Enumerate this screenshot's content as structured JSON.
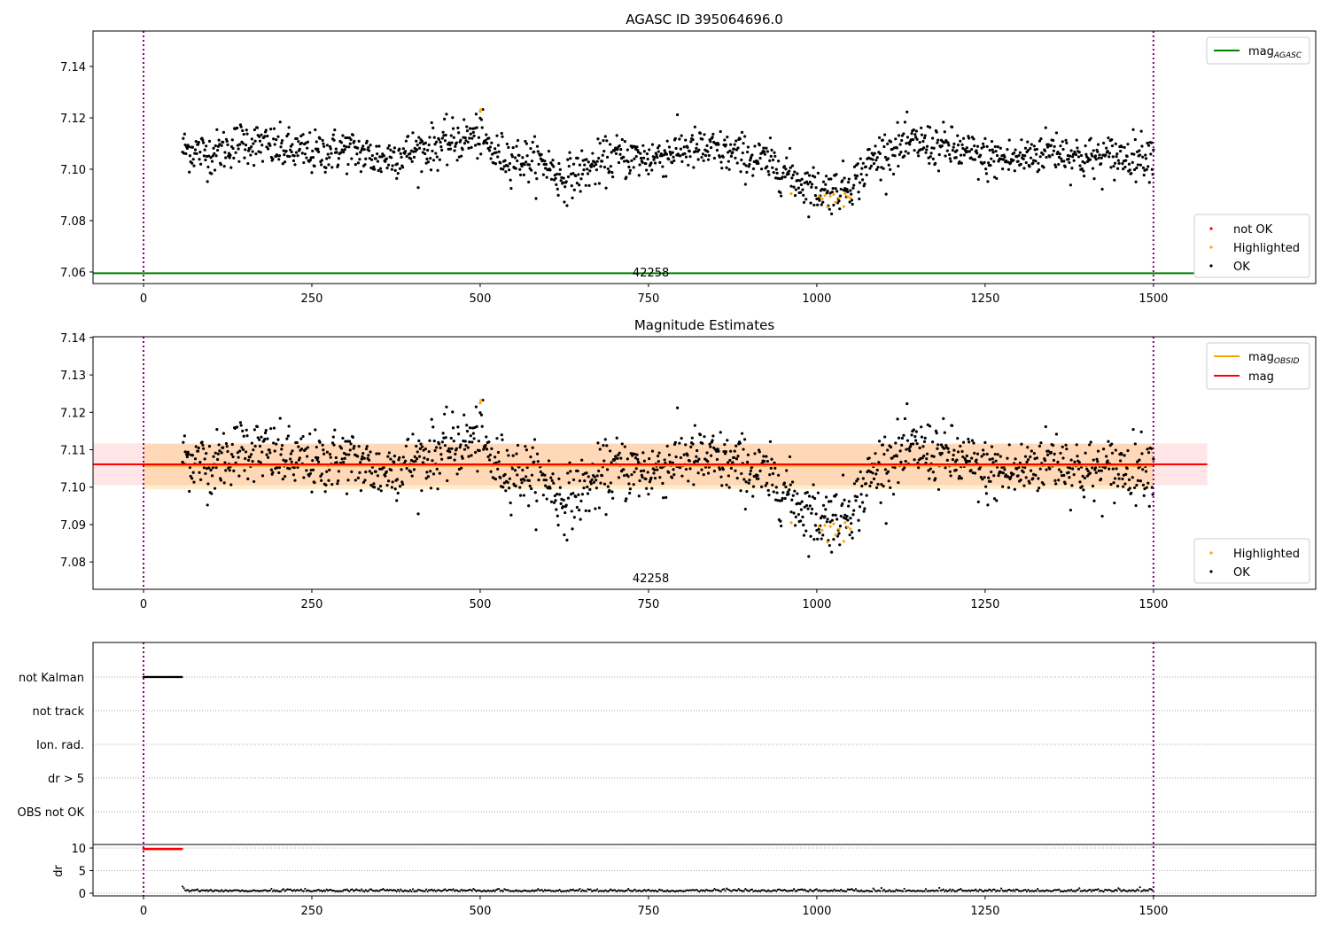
{
  "chart_data": [
    {
      "type": "scatter",
      "title": "AGASC ID 395064696.0",
      "xlim": [
        -75,
        1741
      ],
      "ylim": [
        7.0555,
        7.1538
      ],
      "yticks": [
        7.06,
        7.08,
        7.1,
        7.12,
        7.14
      ],
      "ytick_labels": [
        "7.06",
        "7.08",
        "7.10",
        "7.12",
        "7.14"
      ],
      "xticks": [
        0,
        250,
        500,
        750,
        1000,
        1250,
        1500
      ],
      "xtick_labels": [
        "0",
        "250",
        "500",
        "750",
        "1000",
        "1250",
        "1500"
      ],
      "obsid_label": "42258",
      "obsid_bounds": [
        0,
        1500
      ],
      "mag_agasc": 7.0595,
      "legend_lines": [
        {
          "label": "mag",
          "sub": "AGASC",
          "color": "#008000"
        }
      ],
      "legend_points": [
        {
          "label": "not OK",
          "color": "#ff0000"
        },
        {
          "label": "Highlighted",
          "color": "#ffa500"
        },
        {
          "label": "OK",
          "color": "#000000"
        }
      ]
    },
    {
      "type": "scatter",
      "title": "Magnitude Estimates",
      "xlim": [
        -75,
        1741
      ],
      "ylim": [
        7.0727,
        7.1402
      ],
      "yticks": [
        7.08,
        7.09,
        7.1,
        7.11,
        7.12,
        7.13,
        7.14
      ],
      "ytick_labels": [
        "7.08",
        "7.09",
        "7.10",
        "7.11",
        "7.12",
        "7.13",
        "7.14"
      ],
      "xticks": [
        0,
        250,
        500,
        750,
        1000,
        1250,
        1500
      ],
      "xtick_labels": [
        "0",
        "250",
        "500",
        "750",
        "1000",
        "1250",
        "1500"
      ],
      "obsid_label": "42258",
      "mag": 7.1061,
      "mag_band": [
        7.1005,
        7.1117
      ],
      "mag_band_x": [
        -75,
        1580
      ],
      "mag_obsid": 7.1058,
      "mag_obsid_band": [
        7.0995,
        7.1115
      ],
      "legend_lines": [
        {
          "label": "mag",
          "sub": "OBSID",
          "color": "#ffa500"
        },
        {
          "label": "mag",
          "sub": "",
          "color": "#ff0000"
        }
      ],
      "legend_points": [
        {
          "label": "Highlighted",
          "color": "#ffa500"
        },
        {
          "label": "OK",
          "color": "#000000"
        }
      ]
    },
    {
      "type": "scatter",
      "flags": [
        "not Kalman",
        "not track",
        "Ion. rad.",
        "dr > 5",
        "OBS not OK"
      ],
      "flag_ranges": {
        "not Kalman": [
          0,
          57
        ]
      },
      "dr_ylabel": "dr",
      "dr_yticks": [
        0,
        5,
        10
      ],
      "dr_ytick_labels": [
        "0",
        "5",
        "10"
      ],
      "dr_bad": {
        "range": [
          0,
          57
        ],
        "value": 9.8
      },
      "dr_ok_level": 0.4,
      "xticks": [
        0,
        250,
        500,
        750,
        1000,
        1250,
        1500
      ],
      "xtick_labels": [
        "0",
        "250",
        "500",
        "750",
        "1000",
        "1250",
        "1500"
      ]
    }
  ],
  "series": {
    "time_range": [
      58,
      1500
    ],
    "noise_sd": 0.0042,
    "trend": [
      [
        58,
        7.108
      ],
      [
        100,
        7.106
      ],
      [
        150,
        7.111
      ],
      [
        200,
        7.108
      ],
      [
        250,
        7.106
      ],
      [
        300,
        7.108
      ],
      [
        350,
        7.104
      ],
      [
        400,
        7.107
      ],
      [
        450,
        7.11
      ],
      [
        480,
        7.112
      ],
      [
        500,
        7.113
      ],
      [
        520,
        7.106
      ],
      [
        560,
        7.104
      ],
      [
        600,
        7.102
      ],
      [
        620,
        7.096
      ],
      [
        650,
        7.099
      ],
      [
        700,
        7.105
      ],
      [
        750,
        7.104
      ],
      [
        800,
        7.108
      ],
      [
        850,
        7.107
      ],
      [
        900,
        7.105
      ],
      [
        950,
        7.1
      ],
      [
        975,
        7.095
      ],
      [
        1000,
        7.092
      ],
      [
        1030,
        7.092
      ],
      [
        1060,
        7.096
      ],
      [
        1080,
        7.103
      ],
      [
        1100,
        7.107
      ],
      [
        1150,
        7.11
      ],
      [
        1200,
        7.108
      ],
      [
        1250,
        7.104
      ],
      [
        1300,
        7.104
      ],
      [
        1350,
        7.108
      ],
      [
        1400,
        7.104
      ],
      [
        1450,
        7.105
      ],
      [
        1500,
        7.106
      ]
    ],
    "highlighted": [
      [
        500,
        7.1225
      ],
      [
        501,
        7.1232
      ],
      [
        962,
        7.0905
      ],
      [
        1003,
        7.0895
      ],
      [
        1008,
        7.0885
      ],
      [
        1012,
        7.0898
      ],
      [
        1016,
        7.0853
      ],
      [
        1020,
        7.0895
      ],
      [
        1025,
        7.0902
      ],
      [
        1028,
        7.0872
      ],
      [
        1033,
        7.0888
      ],
      [
        1040,
        7.0855
      ],
      [
        1042,
        7.0905
      ],
      [
        1046,
        7.0893
      ],
      [
        1050,
        7.0888
      ]
    ]
  }
}
